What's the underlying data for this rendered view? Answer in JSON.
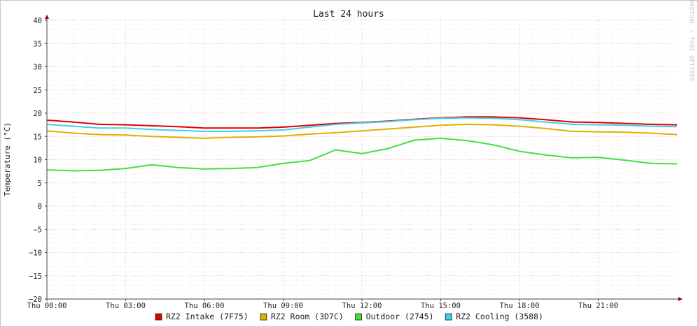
{
  "chart_data": {
    "type": "line",
    "title": "Last 24 hours",
    "ylabel": "Temperature (°C)",
    "watermark": "RRDTOOL / TOBI OETIKER",
    "ylim": [
      -20,
      40
    ],
    "y_ticks": [
      "40",
      "35",
      "30",
      "25",
      "20",
      "15",
      "10",
      "5",
      "0",
      "−10",
      "−15",
      "−20"
    ],
    "y_tick_values": [
      40,
      35,
      30,
      25,
      20,
      15,
      10,
      5,
      0,
      -10,
      -15,
      -20
    ],
    "y_tick_labels_full": [
      "40",
      "35",
      "30",
      "25",
      "20",
      "15",
      "10",
      "5",
      "0",
      "−5",
      "−10",
      "−15",
      "−20"
    ],
    "y_tick_values_full": [
      40,
      35,
      30,
      25,
      20,
      15,
      10,
      5,
      0,
      -5,
      -10,
      -15,
      -20
    ],
    "x_ticks": [
      "Thu 00:00",
      "Thu 03:00",
      "Thu 06:00",
      "Thu 09:00",
      "Thu 12:00",
      "Thu 15:00",
      "Thu 18:00",
      "Thu 21:00"
    ],
    "x_tick_hours": [
      0,
      3,
      6,
      9,
      12,
      15,
      18,
      21
    ],
    "xlim_hours": [
      0,
      24
    ],
    "grid": true,
    "legend_position": "bottom",
    "x_hours": [
      0,
      1,
      2,
      3,
      4,
      5,
      6,
      7,
      8,
      9,
      10,
      11,
      12,
      13,
      14,
      15,
      16,
      17,
      18,
      19,
      20,
      21,
      22,
      23,
      24
    ],
    "series": [
      {
        "name": "RZ2 Intake (7F75)",
        "color": "#e00000",
        "values": [
          18.5,
          18.1,
          17.6,
          17.5,
          17.3,
          17.1,
          16.8,
          16.8,
          16.8,
          17.0,
          17.4,
          17.8,
          18.0,
          18.3,
          18.7,
          19.0,
          19.2,
          19.2,
          19.0,
          18.6,
          18.1,
          18.0,
          17.8,
          17.6,
          17.5
        ]
      },
      {
        "name": "RZ2 Room (3D7C)",
        "color": "#e0b000",
        "values": [
          16.2,
          15.7,
          15.4,
          15.3,
          15.0,
          14.8,
          14.6,
          14.8,
          14.9,
          15.1,
          15.5,
          15.8,
          16.2,
          16.6,
          17.0,
          17.4,
          17.6,
          17.5,
          17.2,
          16.7,
          16.1,
          16.0,
          15.9,
          15.7,
          15.4
        ]
      },
      {
        "name": "Outdoor (2745)",
        "color": "#40e040",
        "values": [
          7.8,
          7.6,
          7.7,
          8.1,
          8.9,
          8.3,
          8.0,
          8.1,
          8.3,
          9.2,
          9.8,
          12.1,
          11.3,
          12.4,
          14.2,
          14.6,
          14.1,
          13.2,
          11.8,
          11.0,
          10.4,
          10.5,
          9.9,
          9.2,
          9.1
        ]
      },
      {
        "name": "RZ2 Cooling (3588)",
        "color": "#40d0e8",
        "values": [
          17.6,
          17.2,
          16.8,
          16.8,
          16.5,
          16.3,
          16.1,
          16.1,
          16.2,
          16.4,
          17.0,
          17.6,
          17.9,
          18.2,
          18.6,
          18.9,
          19.0,
          18.9,
          18.6,
          18.1,
          17.6,
          17.5,
          17.4,
          17.2,
          17.1
        ]
      }
    ]
  }
}
